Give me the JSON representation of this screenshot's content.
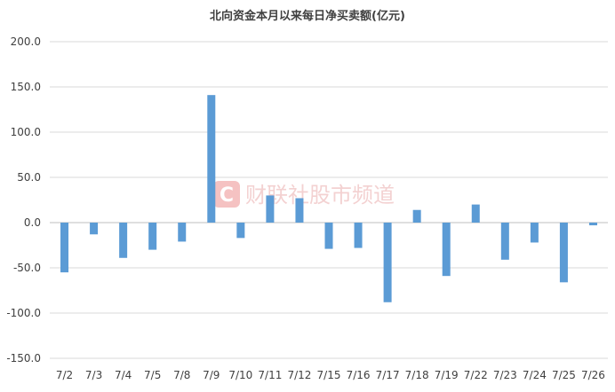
{
  "chart_data": {
    "type": "bar",
    "title": "北向资金本月以来每日净买卖额(亿元)",
    "xlabel": "",
    "ylabel": "",
    "categories": [
      "7/2",
      "7/3",
      "7/4",
      "7/5",
      "7/8",
      "7/9",
      "7/10",
      "7/11",
      "7/12",
      "7/15",
      "7/16",
      "7/17",
      "7/18",
      "7/19",
      "7/22",
      "7/23",
      "7/24",
      "7/25",
      "7/26"
    ],
    "values": [
      -55,
      -13,
      -39,
      -30,
      -21,
      141,
      -17,
      30,
      27,
      -29,
      -28,
      -88,
      14,
      -59,
      20,
      -41,
      -22,
      -66,
      -3
    ],
    "ylim": [
      -150,
      200
    ],
    "yticks": [
      -150,
      -100,
      -50,
      0,
      50,
      100,
      150,
      200
    ],
    "ytick_labels": [
      "-150.0",
      "-100.0",
      "-50.0",
      "0.0",
      "50.0",
      "100.0",
      "150.0",
      "200.0"
    ],
    "grid": true,
    "legend": "none",
    "bar_color": "#5b9bd5"
  },
  "watermark": {
    "text": "财联社股市频道",
    "logo_letter": "C"
  }
}
